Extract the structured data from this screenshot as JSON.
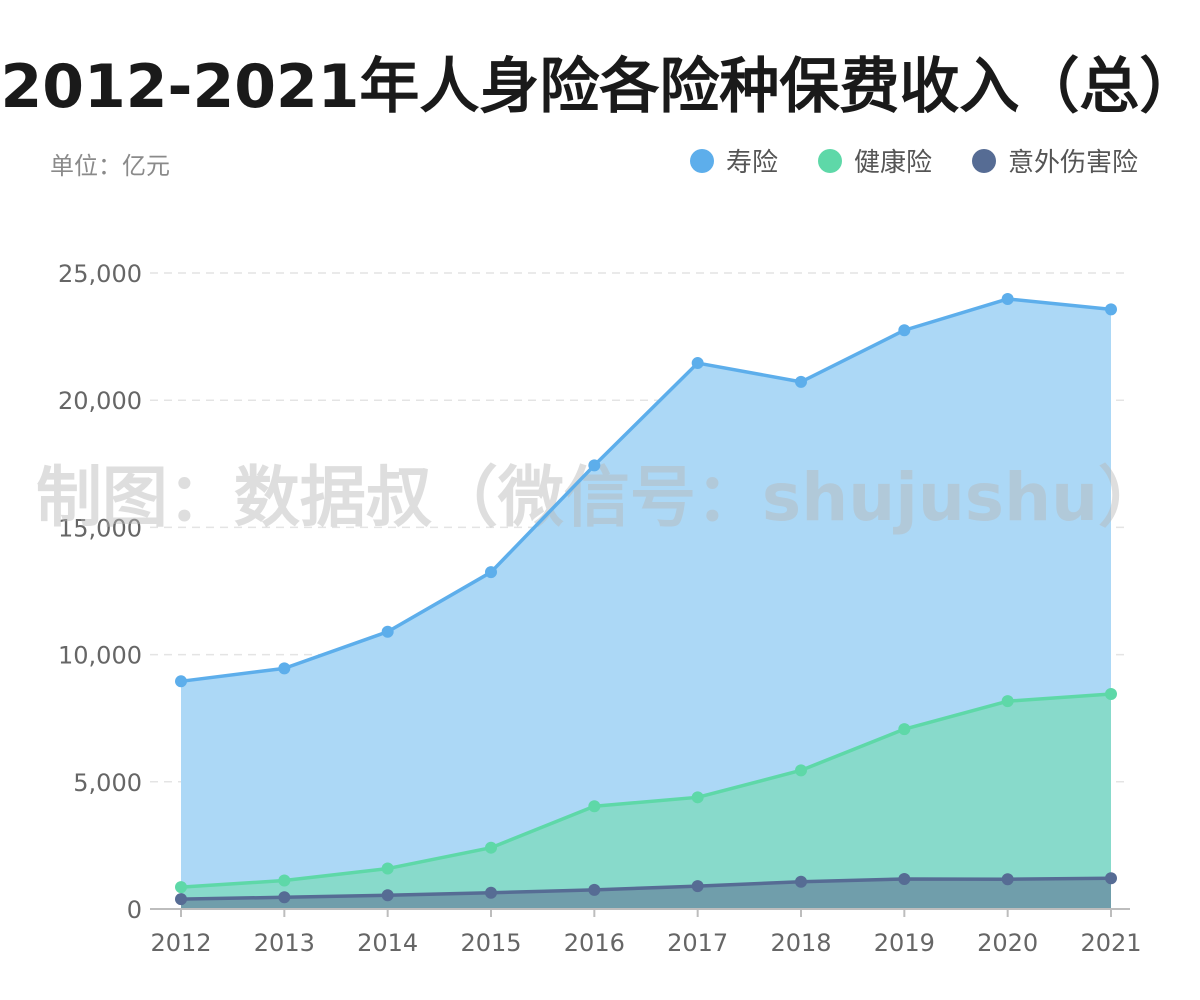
{
  "title": "2012-2021年人身险各险种保费收入（总）",
  "unit_label": "单位：亿元",
  "watermark": "制图：数据叔（微信号：shujushu）",
  "chart_data": {
    "type": "area",
    "title": "2012-2021年人身险各险种保费收入（总）",
    "x": [
      "2012",
      "2013",
      "2014",
      "2015",
      "2016",
      "2017",
      "2018",
      "2019",
      "2020",
      "2021"
    ],
    "ylim": [
      0,
      25000
    ],
    "yticks": [
      0,
      5000,
      10000,
      15000,
      20000,
      25000
    ],
    "ytick_labels": [
      "0",
      "5,000",
      "10,000",
      "15,000",
      "20,000",
      "25,000"
    ],
    "grid": true,
    "legend_position": "top-right",
    "series": [
      {
        "name": "寿险",
        "color": "#5DAEEB",
        "fill": "#ACD8F6",
        "values": [
          8950,
          9460,
          10900,
          13240,
          17440,
          21460,
          20720,
          22750,
          23980,
          23570
        ]
      },
      {
        "name": "健康险",
        "color": "#5ED8A8",
        "fill": "#88DACB",
        "values": [
          860,
          1120,
          1590,
          2410,
          4040,
          4390,
          5450,
          7070,
          8170,
          8450
        ]
      },
      {
        "name": "意外伤害险",
        "color": "#566C94",
        "fill": "#709EAB",
        "values": [
          390,
          460,
          540,
          640,
          750,
          900,
          1070,
          1180,
          1170,
          1210
        ]
      }
    ]
  }
}
